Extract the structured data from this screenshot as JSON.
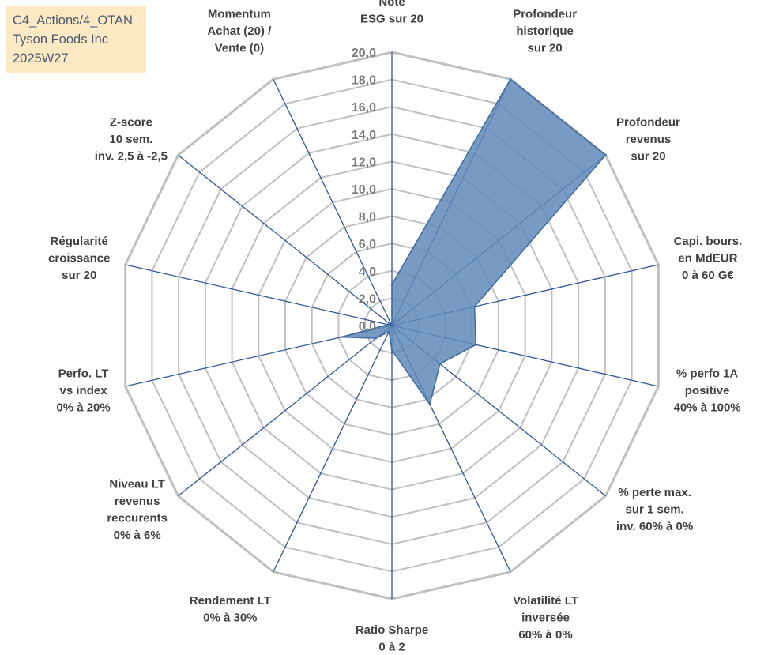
{
  "info": {
    "line1": "C4_Actions/4_OTAN",
    "line2": "Tyson Foods Inc",
    "line3": "2025W27"
  },
  "colors": {
    "grid": "#bfbfbf",
    "spoke": "#2f5597",
    "fill": "#5f89b8",
    "fill_stroke": "#3d6aa0"
  },
  "chart_data": {
    "type": "radar",
    "rmin": 0,
    "rmax": 20,
    "tick_step": 2,
    "tick_labels": [
      "0,0",
      "2,0",
      "4,0",
      "6,0",
      "8,0",
      "10,0",
      "12,0",
      "14,0",
      "16,0",
      "18,0",
      "20,0"
    ],
    "axes": [
      {
        "label": [
          "Note",
          "ESG sur 20"
        ],
        "value": 3
      },
      {
        "label": [
          "Profondeur",
          "historique",
          "sur 20"
        ],
        "value": 20
      },
      {
        "label": [
          "Profondeur",
          "revenus",
          "sur 20"
        ],
        "value": 20
      },
      {
        "label": [
          "Capi. bours.",
          "en MdEUR",
          "0 à 60 G€"
        ],
        "value": 6.2
      },
      {
        "label": [
          "% perfo 1A",
          "positive",
          "40% à 100%"
        ],
        "value": 6.3
      },
      {
        "label": [
          "% perte max.",
          "sur 1 sem.",
          "inv. 60% à 0%"
        ],
        "value": 4.5
      },
      {
        "label": [
          "Volatilité LT",
          "inversée",
          "60% à 0%"
        ],
        "value": 6.4
      },
      {
        "label": [
          "Ratio Sharpe",
          "0 à 2"
        ],
        "value": 1.8
      },
      {
        "label": [
          "Rendement LT",
          "0% à 30%"
        ],
        "value": 0.5
      },
      {
        "label": [
          "Niveau LT",
          "revenus",
          "reccurents",
          "0% à 6%"
        ],
        "value": 1.5
      },
      {
        "label": [
          "Perfo. LT",
          "vs index",
          "0% à 20%"
        ],
        "value": 3.8
      },
      {
        "label": [
          "Régularité",
          "croissance",
          "sur 20"
        ],
        "value": 0.3
      },
      {
        "label": [
          "Z-score",
          "10 sem.",
          "inv. 2,5 à -2,5"
        ],
        "value": 0.2
      },
      {
        "label": [
          "Momentum",
          "Achat (20) /",
          "Vente (0)"
        ],
        "value": 0
      }
    ]
  }
}
